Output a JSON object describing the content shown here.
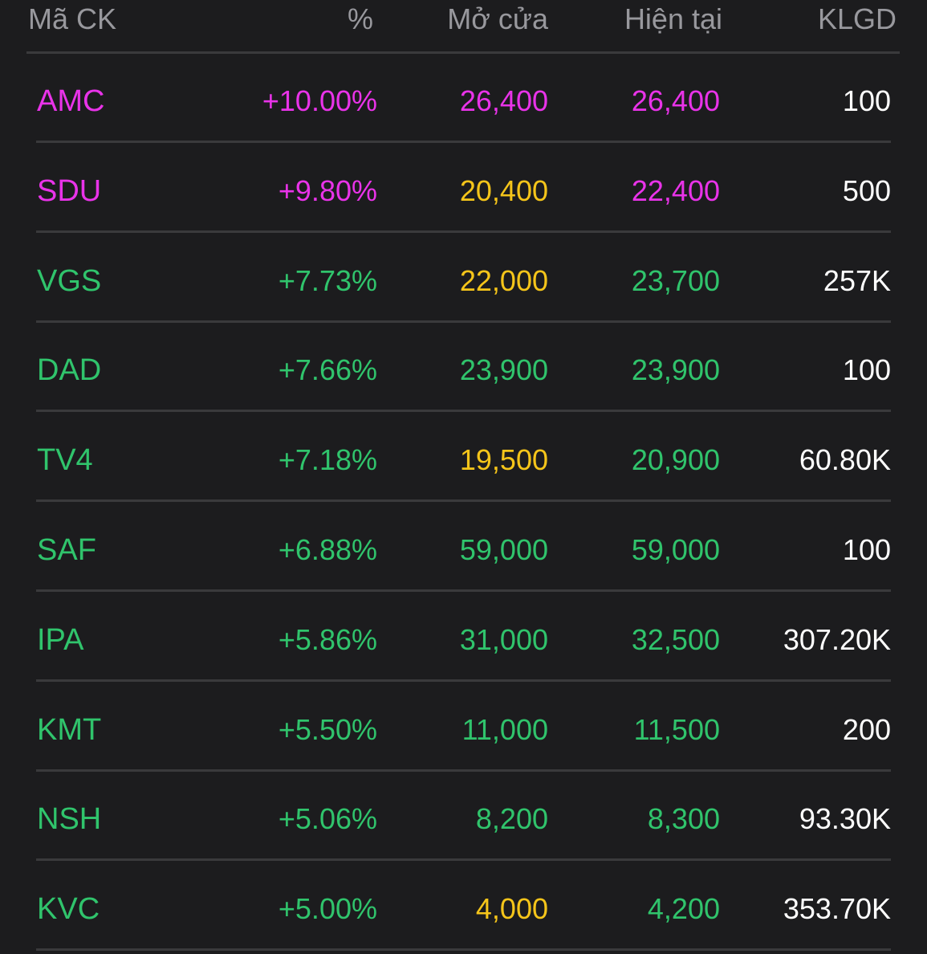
{
  "colors": {
    "background": "#1c1c1e",
    "ceiling": "#e933e9",
    "up": "#30c46c",
    "reference": "#f5c51a",
    "neutral": "#ffffff",
    "header": "#98989d"
  },
  "header": {
    "symbol": "Mã CK",
    "percent": "%",
    "open": "Mở cửa",
    "current": "Hiện tại",
    "volume": "KLGD"
  },
  "rows": [
    {
      "symbol": "AMC",
      "percent": "+10.00%",
      "open": "26,400",
      "current": "26,400",
      "volume": "100",
      "symbol_color": "ceiling",
      "percent_color": "ceiling",
      "open_color": "ceiling",
      "current_color": "ceiling"
    },
    {
      "symbol": "SDU",
      "percent": "+9.80%",
      "open": "20,400",
      "current": "22,400",
      "volume": "500",
      "symbol_color": "ceiling",
      "percent_color": "ceiling",
      "open_color": "reference",
      "current_color": "ceiling"
    },
    {
      "symbol": "VGS",
      "percent": "+7.73%",
      "open": "22,000",
      "current": "23,700",
      "volume": "257K",
      "symbol_color": "up",
      "percent_color": "up",
      "open_color": "reference",
      "current_color": "up"
    },
    {
      "symbol": "DAD",
      "percent": "+7.66%",
      "open": "23,900",
      "current": "23,900",
      "volume": "100",
      "symbol_color": "up",
      "percent_color": "up",
      "open_color": "up",
      "current_color": "up"
    },
    {
      "symbol": "TV4",
      "percent": "+7.18%",
      "open": "19,500",
      "current": "20,900",
      "volume": "60.80K",
      "symbol_color": "up",
      "percent_color": "up",
      "open_color": "reference",
      "current_color": "up"
    },
    {
      "symbol": "SAF",
      "percent": "+6.88%",
      "open": "59,000",
      "current": "59,000",
      "volume": "100",
      "symbol_color": "up",
      "percent_color": "up",
      "open_color": "up",
      "current_color": "up"
    },
    {
      "symbol": "IPA",
      "percent": "+5.86%",
      "open": "31,000",
      "current": "32,500",
      "volume": "307.20K",
      "symbol_color": "up",
      "percent_color": "up",
      "open_color": "up",
      "current_color": "up"
    },
    {
      "symbol": "KMT",
      "percent": "+5.50%",
      "open": "11,000",
      "current": "11,500",
      "volume": "200",
      "symbol_color": "up",
      "percent_color": "up",
      "open_color": "up",
      "current_color": "up"
    },
    {
      "symbol": "NSH",
      "percent": "+5.06%",
      "open": "8,200",
      "current": "8,300",
      "volume": "93.30K",
      "symbol_color": "up",
      "percent_color": "up",
      "open_color": "up",
      "current_color": "up"
    },
    {
      "symbol": "KVC",
      "percent": "+5.00%",
      "open": "4,000",
      "current": "4,200",
      "volume": "353.70K",
      "symbol_color": "up",
      "percent_color": "up",
      "open_color": "reference",
      "current_color": "up"
    }
  ]
}
